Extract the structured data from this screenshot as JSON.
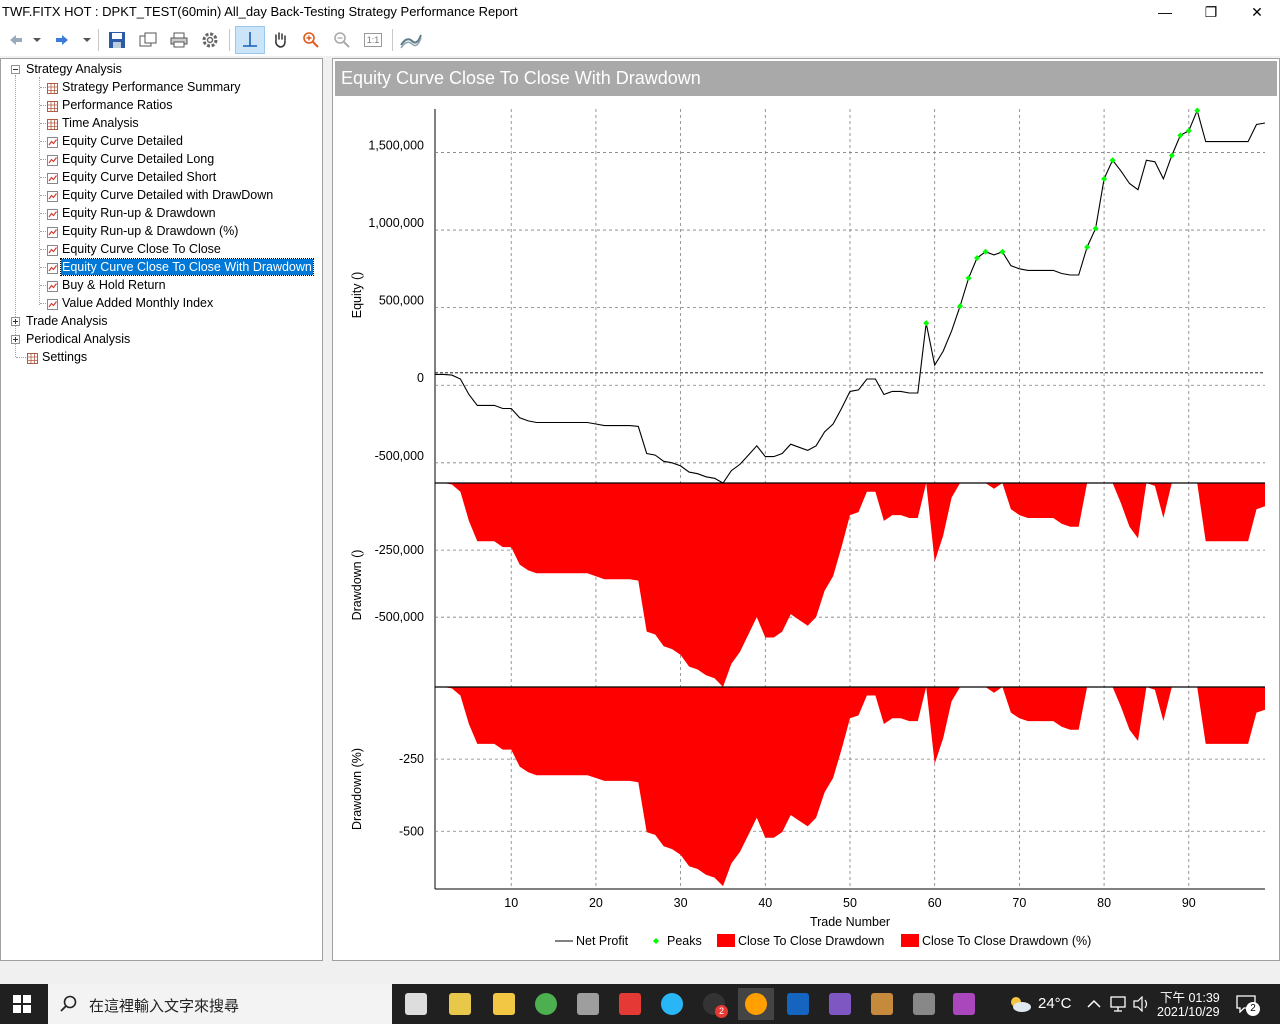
{
  "window": {
    "title": "TWF.FITX HOT : DPKT_TEST(60min) All_day Back-Testing Strategy Performance Report",
    "controls": {
      "minimize": "—",
      "maximize": "❐",
      "close": "✕"
    }
  },
  "toolbar": {
    "icons": [
      "back-arrow-icon",
      "dropdown-caret-icon",
      "forward-arrow-icon",
      "dropdown-caret-icon",
      "save-icon",
      "copy-icon",
      "print-icon",
      "settings-gear-icon",
      "crosshair-cursor-icon",
      "pan-hand-icon",
      "zoom-in-icon",
      "zoom-out-icon",
      "zoom-100-icon",
      "chart-style-icon"
    ],
    "zoom_reset_label": "1:1"
  },
  "tree": {
    "root": "Strategy Analysis",
    "children": [
      "Strategy Performance Summary",
      "Performance Ratios",
      "Time Analysis",
      "Equity Curve Detailed",
      "Equity Curve Detailed Long",
      "Equity Curve Detailed Short",
      "Equity Curve Detailed with DrawDown",
      "Equity Run-up & Drawdown",
      "Equity Run-up & Drawdown (%)",
      "Equity Curve Close To Close",
      "Equity Curve Close To Close With Drawdown",
      "Buy & Hold Return",
      "Value Added Monthly Index"
    ],
    "selected": "Equity Curve Close To Close With Drawdown",
    "other_roots": [
      "Trade Analysis",
      "Periodical Analysis"
    ],
    "settings": "Settings"
  },
  "panel": {
    "title": "Equity Curve Close To Close With Drawdown"
  },
  "chart_data": {
    "type": "line",
    "xlabel": "Trade Number",
    "x_ticks": [
      10,
      20,
      30,
      40,
      50,
      60,
      70,
      80,
      90
    ],
    "xlim": [
      1,
      99
    ],
    "legend": [
      "Net Profit",
      "Peaks",
      "Close To Close Drawdown",
      "Close To Close Drawdown (%)"
    ],
    "equity_panel": {
      "ylabel": "Equity ()",
      "y_ticks": [
        "1,500,000",
        "1,000,000",
        "500,000",
        "0",
        "-500,000"
      ],
      "ylim": [
        -630000,
        1780000
      ],
      "series": [
        {
          "name": "Net Profit",
          "values": [
            70000,
            70000,
            65000,
            40000,
            -60000,
            -130000,
            -130000,
            -130000,
            -150000,
            -150000,
            -210000,
            -230000,
            -240000,
            -240000,
            -240000,
            -240000,
            -240000,
            -240000,
            -240000,
            -250000,
            -260000,
            -260000,
            -260000,
            -260000,
            -265000,
            -440000,
            -450000,
            -490000,
            -500000,
            -520000,
            -560000,
            -570000,
            -590000,
            -600000,
            -630000,
            -550000,
            -510000,
            -450000,
            -390000,
            -460000,
            -460000,
            -440000,
            -380000,
            -400000,
            -420000,
            -390000,
            -300000,
            -250000,
            -150000,
            -40000,
            -30000,
            40000,
            40000,
            -60000,
            -40000,
            -40000,
            -50000,
            -50000,
            400000,
            130000,
            220000,
            350000,
            510000,
            690000,
            820000,
            860000,
            840000,
            860000,
            770000,
            750000,
            740000,
            740000,
            740000,
            740000,
            720000,
            710000,
            710000,
            890000,
            1010000,
            1330000,
            1450000,
            1380000,
            1300000,
            1260000,
            1450000,
            1440000,
            1330000,
            1480000,
            1610000,
            1640000,
            1770000,
            1570000,
            1570000,
            1570000,
            1570000,
            1570000,
            1570000,
            1680000,
            1690000
          ]
        }
      ],
      "peaks_trade_numbers": [
        59,
        63,
        64,
        65,
        66,
        68,
        78,
        79,
        80,
        81,
        88,
        89,
        90,
        91
      ]
    },
    "drawdown_panel": {
      "ylabel": "Drawdown ()",
      "y_ticks": [
        "-250,000",
        "-500,000"
      ],
      "ylim": [
        -760000,
        0
      ]
    },
    "drawdown_pct_panel": {
      "ylabel": "Drawdown (%)",
      "y_ticks": [
        "-250",
        "-500"
      ],
      "ylim": [
        -700,
        0
      ]
    },
    "colors": {
      "net_profit": "#000000",
      "peaks": "#00ff00",
      "drawdown_fill": "#ff0000",
      "grid": "#7f7f7f"
    }
  },
  "taskbar": {
    "search_placeholder": "在這裡輸入文字來搜尋",
    "weather_temp": "24°C",
    "time": "下午 01:39",
    "date": "2021/10/29",
    "notification_count": "2",
    "app_badge": "2",
    "apps": [
      "task-view-icon",
      "pen-app-icon",
      "file-explorer-icon",
      "chrome-icon",
      "calculator-icon",
      "anydesk-icon",
      "globe-app-icon",
      "trading-app-icon",
      "multicharts-app-icon",
      "visual-studio-icon",
      "visual-studio-purple-icon",
      "package-app-icon",
      "formula-app-icon",
      "paint-app-icon"
    ]
  }
}
